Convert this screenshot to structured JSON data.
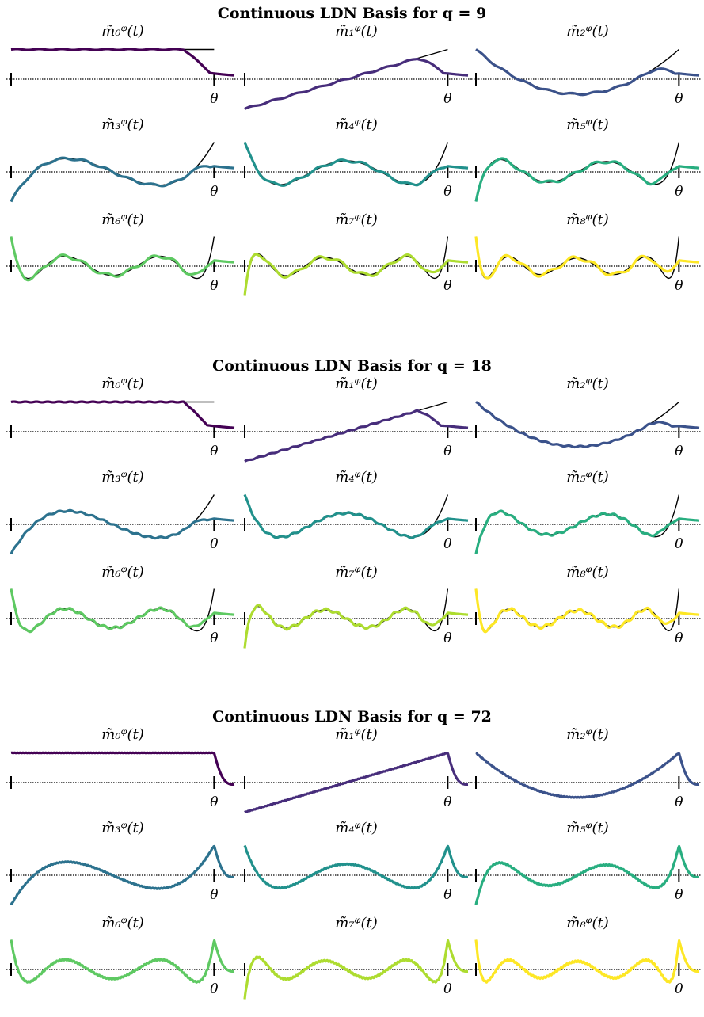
{
  "figure": {
    "theta_label": "θ",
    "blocks": [
      {
        "title": "Continuous LDN Basis for q = 9",
        "q": 9
      },
      {
        "title": "Continuous LDN Basis for q = 18",
        "q": 18
      },
      {
        "title": "Continuous LDN Basis for q = 72",
        "q": 72
      }
    ],
    "panel_titles": [
      "m̃₀ᵠ(t)",
      "m̃₁ᵠ(t)",
      "m̃₂ᵠ(t)",
      "m̃₃ᵠ(t)",
      "m̃₄ᵠ(t)",
      "m̃₅ᵠ(t)",
      "m̃₆ᵠ(t)",
      "m̃₇ᵠ(t)",
      "m̃₈ᵠ(t)"
    ]
  },
  "chart_data": {
    "type": "line",
    "grid": "3 blocks × 3×3 panels",
    "description_free": true,
    "x_range": [
      0,
      1.1
    ],
    "theta_at": 1.0,
    "series_colors": [
      "#440154",
      "#472d7b",
      "#3b528b",
      "#2c728e",
      "#21918c",
      "#28ae80",
      "#5ec962",
      "#addc30",
      "#fde725"
    ],
    "reference_color": "#000000",
    "orders_shown": [
      0,
      1,
      2,
      3,
      4,
      5,
      6,
      7,
      8
    ],
    "q_values": [
      9,
      18,
      72
    ]
  }
}
